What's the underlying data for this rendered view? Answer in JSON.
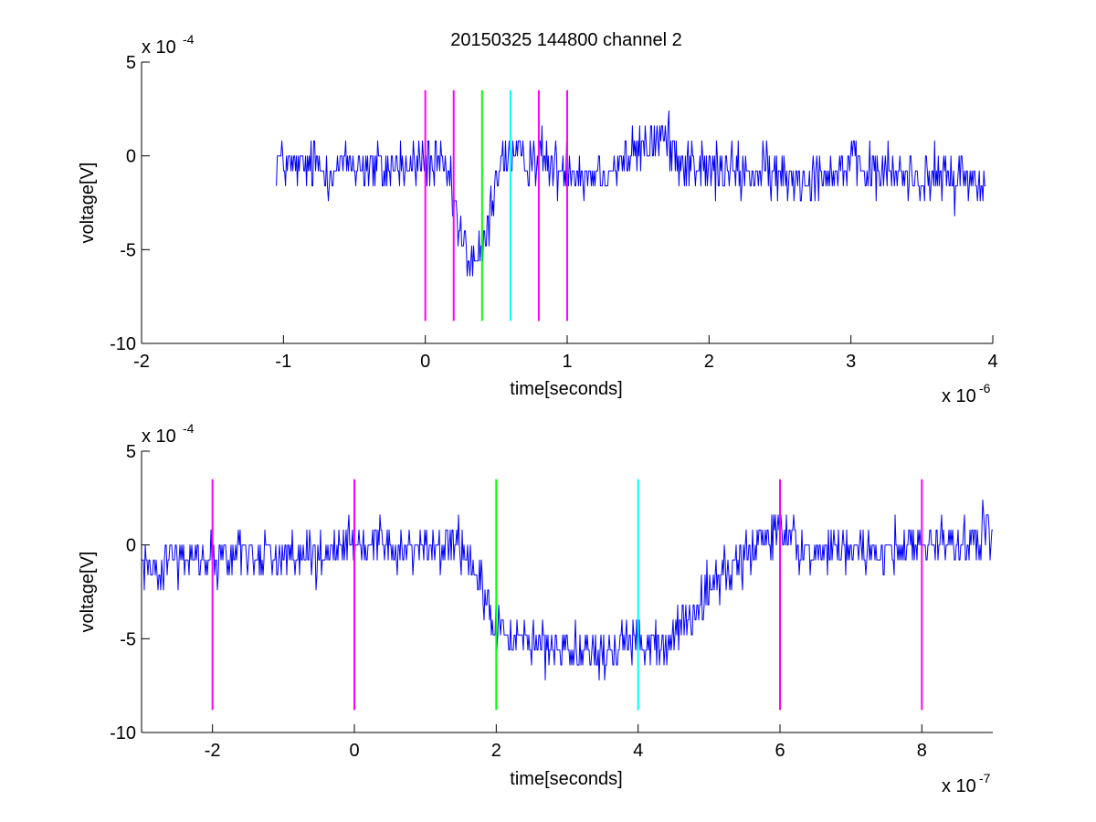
{
  "figure_title": "20150325 144800 channel 2",
  "chart_data": [
    {
      "type": "line",
      "title": "20150325 144800 channel 2",
      "xlabel": "time[seconds]",
      "ylabel": "voltage[V]",
      "x_exponent_label": "x 10",
      "x_exponent": "-6",
      "y_exponent_label": "x 10",
      "y_exponent": "-4",
      "xlim": [
        -2,
        4
      ],
      "ylim": [
        -10,
        5
      ],
      "x_ticks": [
        -2,
        -1,
        0,
        1,
        2,
        3,
        4
      ],
      "x_tick_labels": [
        "-2",
        "-1",
        "0",
        "1",
        "2",
        "3",
        "4"
      ],
      "y_ticks": [
        -10,
        -5,
        0,
        5
      ],
      "y_tick_labels": [
        "-10",
        "-5",
        "0",
        "5"
      ],
      "grid": false,
      "series": [
        {
          "color": "#0000ff",
          "x": [
            -1.05,
            -1.0,
            -0.9,
            -0.8,
            -0.7,
            -0.6,
            -0.5,
            -0.4,
            -0.3,
            -0.2,
            -0.1,
            0.0,
            0.1,
            0.15,
            0.2,
            0.25,
            0.3,
            0.35,
            0.4,
            0.45,
            0.5,
            0.55,
            0.6,
            0.7,
            0.8,
            0.9,
            1.0,
            1.1,
            1.2,
            1.3,
            1.4,
            1.5,
            1.6,
            1.65,
            1.7,
            1.8,
            1.9,
            2.0,
            2.2,
            2.4,
            2.6,
            2.8,
            3.0,
            3.2,
            3.4,
            3.6,
            3.8,
            3.95
          ],
          "y": [
            0,
            -0.3,
            -0.6,
            -0.5,
            -0.7,
            -0.6,
            -0.4,
            -0.6,
            -0.7,
            -0.5,
            -0.7,
            -0.3,
            -0.6,
            -1.0,
            -2.5,
            -4.5,
            -5.3,
            -5.6,
            -5.5,
            -3.5,
            -0.8,
            -0.2,
            0.0,
            -0.3,
            0.0,
            -0.7,
            -0.4,
            -1.1,
            -0.9,
            -0.6,
            -0.2,
            0.2,
            0.7,
            1.2,
            0.8,
            0.0,
            -0.6,
            -0.8,
            -0.9,
            -1.0,
            -1.2,
            -0.9,
            -0.6,
            -0.9,
            -1.0,
            -1.2,
            -1.1,
            -1.6
          ],
          "noise_amplitude": 1.0
        }
      ],
      "markers": [
        {
          "x": 0.0,
          "color": "#ff00ff"
        },
        {
          "x": 0.2,
          "color": "#ff00ff"
        },
        {
          "x": 0.4,
          "color": "#00ff00"
        },
        {
          "x": 0.6,
          "color": "#00ffff"
        },
        {
          "x": 0.8,
          "color": "#ff00ff"
        },
        {
          "x": 1.0,
          "color": "#ff00ff"
        }
      ],
      "marker_ylim": [
        -8.8,
        3.5
      ]
    },
    {
      "type": "line",
      "title": "",
      "xlabel": "time[seconds]",
      "ylabel": "voltage[V]",
      "x_exponent_label": "x 10",
      "x_exponent": "-7",
      "y_exponent_label": "x 10",
      "y_exponent": "-4",
      "xlim": [
        -3,
        9
      ],
      "ylim": [
        -10,
        5
      ],
      "x_ticks": [
        -2,
        0,
        2,
        4,
        6,
        8
      ],
      "x_tick_labels": [
        "-2",
        "0",
        "2",
        "4",
        "6",
        "8"
      ],
      "y_ticks": [
        -10,
        -5,
        0,
        5
      ],
      "y_tick_labels": [
        "-10",
        "-5",
        "0",
        "5"
      ],
      "grid": false,
      "series": [
        {
          "color": "#0000ff",
          "x": [
            -3.0,
            -2.5,
            -2.0,
            -1.5,
            -1.0,
            -0.5,
            0.0,
            0.5,
            1.0,
            1.5,
            1.8,
            2.0,
            2.5,
            3.0,
            3.5,
            4.0,
            4.3,
            4.6,
            5.0,
            5.5,
            6.0,
            6.5,
            7.0,
            7.5,
            8.0,
            8.5,
            9.0
          ],
          "y": [
            -1.0,
            -0.8,
            -0.6,
            -0.4,
            -0.6,
            -0.8,
            0.0,
            0.0,
            -0.2,
            0.0,
            -2.5,
            -4.4,
            -5.3,
            -5.6,
            -6.0,
            -5.0,
            -5.8,
            -4.5,
            -2.3,
            -0.6,
            0.8,
            -0.4,
            -0.2,
            -0.4,
            0.4,
            0.0,
            0.7
          ],
          "noise_amplitude": 0.9
        }
      ],
      "markers": [
        {
          "x": -2.0,
          "color": "#ff00ff"
        },
        {
          "x": 0.0,
          "color": "#ff00ff"
        },
        {
          "x": 2.0,
          "color": "#00ff00"
        },
        {
          "x": 4.0,
          "color": "#00ffff"
        },
        {
          "x": 6.0,
          "color": "#ff00ff"
        },
        {
          "x": 8.0,
          "color": "#ff00ff"
        }
      ],
      "marker_ylim": [
        -8.8,
        3.5
      ]
    }
  ]
}
